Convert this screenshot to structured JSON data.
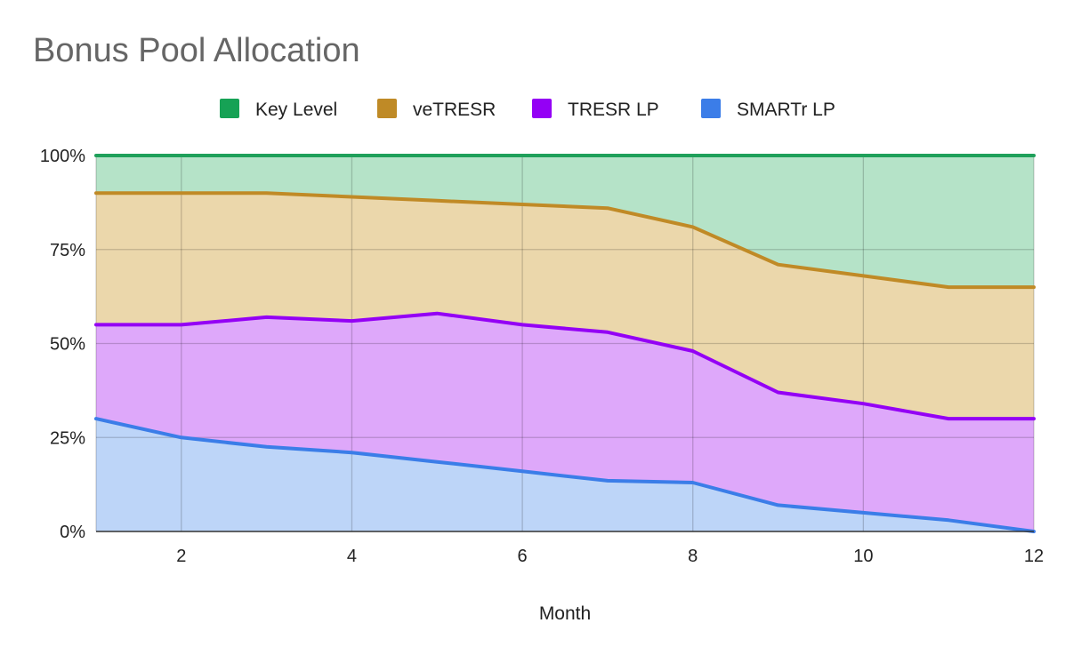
{
  "chart_data": {
    "type": "area",
    "stacked": true,
    "percent": true,
    "title": "Bonus Pool Allocation",
    "xlabel": "Month",
    "ylabel": "",
    "xlim": [
      1,
      12
    ],
    "ylim": [
      0,
      100
    ],
    "x": [
      1,
      2,
      3,
      4,
      5,
      6,
      7,
      8,
      9,
      10,
      11,
      12
    ],
    "x_ticks": [
      "2",
      "4",
      "6",
      "8",
      "10",
      "12"
    ],
    "x_tick_values": [
      2,
      4,
      6,
      8,
      10,
      12
    ],
    "y_ticks": [
      "0%",
      "25%",
      "50%",
      "75%",
      "100%"
    ],
    "y_tick_values": [
      0,
      25,
      50,
      75,
      100
    ],
    "x_grid_values": [
      1,
      2,
      4,
      6,
      8,
      10,
      12
    ],
    "legend_position": "top",
    "series": [
      {
        "name": "SMARTr LP",
        "line_color": "#3b7de8",
        "fill_color": "#bdd5f8",
        "values": [
          30,
          25,
          22.5,
          21,
          18.5,
          16,
          13.5,
          13,
          7,
          5,
          3,
          0
        ]
      },
      {
        "name": "TRESR LP",
        "line_color": "#9400f5",
        "fill_color": "#dea8fa",
        "values": [
          25,
          30,
          34.5,
          35,
          39.5,
          39,
          39.5,
          35,
          30,
          29,
          27,
          30
        ]
      },
      {
        "name": "veTRESR",
        "line_color": "#c08a26",
        "fill_color": "#ebd7ab",
        "values": [
          35,
          35,
          33,
          33,
          30,
          32,
          33,
          33,
          34,
          34,
          35,
          35
        ]
      },
      {
        "name": "Key Level",
        "line_color": "#1fa05a",
        "fill_color": "#b5e3c8",
        "values": [
          10,
          10,
          10,
          11,
          12,
          13,
          14,
          19,
          29,
          32,
          35,
          35
        ]
      }
    ],
    "legend_order": [
      "Key Level",
      "veTRESR",
      "TRESR LP",
      "SMARTr LP"
    ],
    "legend_colors": [
      "#16a255",
      "#bf8a26",
      "#9400f5",
      "#3b7de8"
    ],
    "grid_color": "#b7b7b7",
    "axis_color": "#333333"
  }
}
